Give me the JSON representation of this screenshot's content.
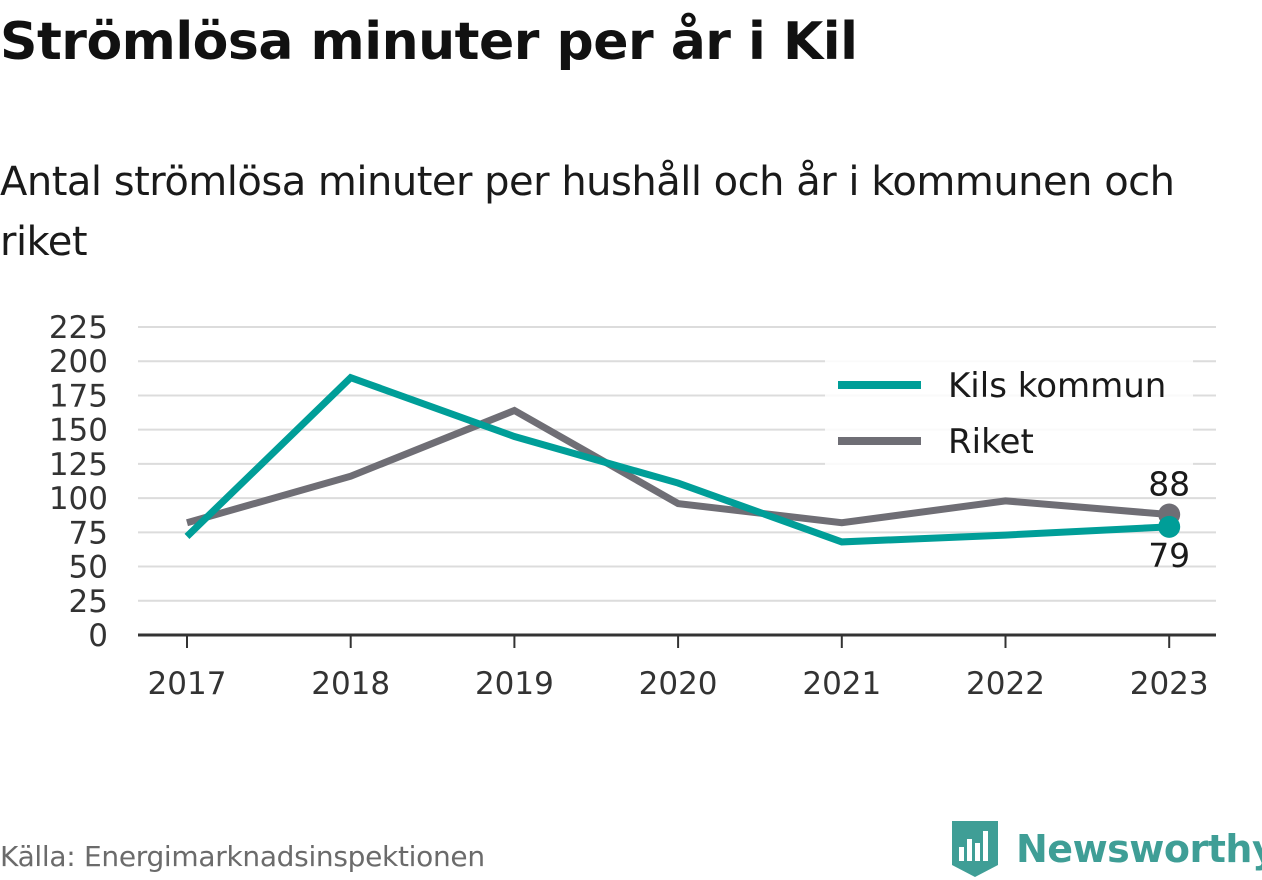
{
  "header": {
    "title": "Strömlösa minuter per år i Kil",
    "subtitle": "Antal strömlösa minuter per hushåll och år i kommunen och riket"
  },
  "footer": {
    "source": "Källa: Energimarknadsinspektionen",
    "brand": "Newsworthy"
  },
  "colors": {
    "kil": "#009e98",
    "riket": "#6f6e75",
    "grid": "#dcdcdc",
    "axis": "#333333",
    "brand": "#3f9e96"
  },
  "chart_data": {
    "type": "line",
    "categories": [
      "2017",
      "2018",
      "2019",
      "2020",
      "2021",
      "2022",
      "2023"
    ],
    "ylim": [
      0,
      225
    ],
    "yticks": [
      "0",
      "25",
      "50",
      "75",
      "100",
      "125",
      "150",
      "175",
      "200",
      "225"
    ],
    "grid": true,
    "legend_position": "top-right",
    "series": [
      {
        "name": "Kils kommun",
        "values": [
          72,
          188,
          145,
          111,
          68,
          73,
          79
        ],
        "end_label": "79"
      },
      {
        "name": "Riket",
        "values": [
          82,
          116,
          164,
          96,
          82,
          98,
          88
        ],
        "end_label": "88"
      }
    ]
  }
}
